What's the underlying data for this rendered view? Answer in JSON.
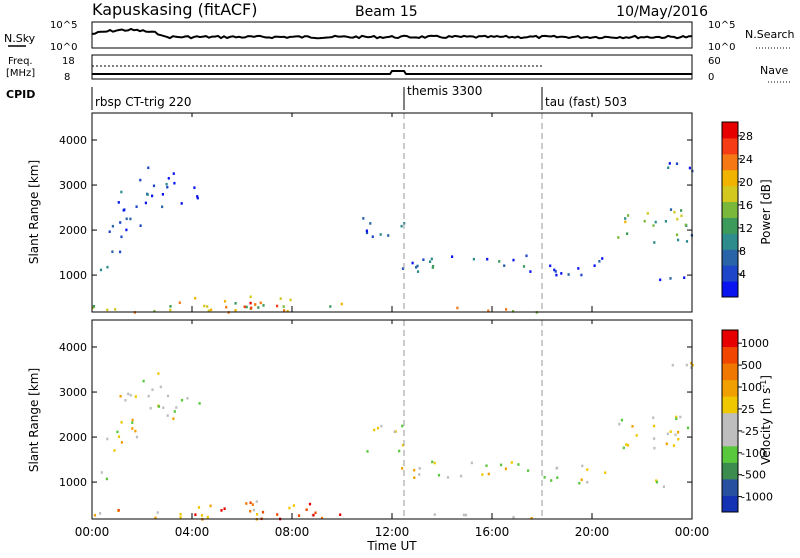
{
  "header": {
    "station": "Kapuskasing (fitACF)",
    "beam": "Beam 15",
    "date": "10/May/2016"
  },
  "noise_panel": {
    "left_label": "N.Sky",
    "right_label": "N.Search",
    "left_ticks": [
      "10^5",
      "10^0"
    ],
    "right_ticks": [
      "10^5",
      "10^0"
    ]
  },
  "freq_panel": {
    "left_label_line1": "Freq.",
    "left_label_line2": "[MHz]",
    "left_ticks": [
      "18",
      "8"
    ],
    "right_label": "Nave",
    "right_ticks": [
      "60",
      "0"
    ]
  },
  "cpid_panel": {
    "label": "CPID",
    "segments": [
      {
        "name": "rbsp CT-trig 220",
        "start_hour": 0.0
      },
      {
        "name": "themis 3300",
        "start_hour": 12.5
      },
      {
        "name": "tau (fast) 503",
        "start_hour": 18.0
      }
    ]
  },
  "xaxis": {
    "label": "Time UT",
    "range_hours": [
      0,
      24
    ],
    "ticks": [
      {
        "hour": 0,
        "label": "00:00"
      },
      {
        "hour": 4,
        "label": "04:00"
      },
      {
        "hour": 8,
        "label": "08:00"
      },
      {
        "hour": 12,
        "label": "12:00"
      },
      {
        "hour": 16,
        "label": "16:00"
      },
      {
        "hour": 20,
        "label": "20:00"
      },
      {
        "hour": 24,
        "label": "00:00"
      }
    ]
  },
  "chart_data": [
    {
      "type": "heatmap",
      "name": "power",
      "ylabel": "Slant Range [km]",
      "ylim": [
        180,
        4600
      ],
      "xlim": [
        0,
        24
      ],
      "yticks": [
        1000,
        2000,
        3000,
        4000
      ],
      "colorbar": {
        "label": "Power [dB]",
        "ticks": [
          "4",
          "8",
          "12",
          "16",
          "20",
          "24",
          "28"
        ],
        "colors": [
          "#0a14f0",
          "#1e46c8",
          "#2a64a8",
          "#2e8c8c",
          "#3c9a5a",
          "#7ab83c",
          "#d2c81e",
          "#f0b400",
          "#f57814",
          "#f53c14",
          "#e60000"
        ]
      },
      "dashed_lines_hours": [
        12.5,
        18.0
      ],
      "scatter_regions": [
        {
          "t": [
            0.0,
            0.6
          ],
          "r": [
            1050,
            1350
          ],
          "level": 0.55
        },
        {
          "t": [
            0.5,
            1.2
          ],
          "r": [
            1400,
            2200
          ],
          "level": 0.2
        },
        {
          "t": [
            1.0,
            2.0
          ],
          "r": [
            2000,
            3200
          ],
          "level": 0.15
        },
        {
          "t": [
            2.0,
            3.3
          ],
          "r": [
            2400,
            3500
          ],
          "level": 0.12
        },
        {
          "t": [
            3.3,
            4.3
          ],
          "r": [
            2600,
            3000
          ],
          "level": 0.05
        },
        {
          "t": [
            0.0,
            10.0
          ],
          "r": [
            200,
            420
          ],
          "level": 0.6
        },
        {
          "t": [
            4.0,
            9.0
          ],
          "r": [
            200,
            600
          ],
          "level": 0.75
        },
        {
          "t": [
            10.8,
            12.5
          ],
          "r": [
            1700,
            2300
          ],
          "level": 0.15
        },
        {
          "t": [
            12.3,
            17.5
          ],
          "r": [
            1100,
            1500
          ],
          "level": 0.25
        },
        {
          "t": [
            13.0,
            18.0
          ],
          "r": [
            200,
            320
          ],
          "level": 0.6
        },
        {
          "t": [
            18.0,
            21.0
          ],
          "r": [
            1000,
            1400
          ],
          "level": 0.1
        },
        {
          "t": [
            21.0,
            24.0
          ],
          "r": [
            1700,
            2500
          ],
          "level": 0.45
        },
        {
          "t": [
            22.5,
            24.0
          ],
          "r": [
            900,
            1100
          ],
          "level": 0.15
        },
        {
          "t": [
            23.0,
            24.0
          ],
          "r": [
            3300,
            3800
          ],
          "level": 0.1
        }
      ]
    },
    {
      "type": "heatmap",
      "name": "velocity",
      "ylabel": "Slant Range [km]",
      "ylim": [
        180,
        4600
      ],
      "xlim": [
        0,
        24
      ],
      "yticks": [
        1000,
        2000,
        3000,
        4000
      ],
      "colorbar": {
        "label": "Velocity [m s^-1]",
        "ticks": [
          "1000",
          "500",
          "100",
          "25",
          "-25",
          "-100",
          "-500",
          "-1000"
        ],
        "colors": [
          "#1432b4",
          "#2850a0",
          "#3c8c50",
          "#5ac83c",
          "#bebebe",
          "#bebebe",
          "#f0c800",
          "#f0a000",
          "#f07800",
          "#f04600",
          "#e60000"
        ]
      },
      "dashed_lines_hours": [
        12.5,
        18.0
      ],
      "scatter_regions": [
        {
          "t": [
            0.0,
            0.6
          ],
          "r": [
            1050,
            1350
          ],
          "level": 0.5
        },
        {
          "t": [
            0.5,
            1.2
          ],
          "r": [
            1400,
            2200
          ],
          "level": 0.5
        },
        {
          "t": [
            1.0,
            2.0
          ],
          "r": [
            2000,
            3200
          ],
          "level": 0.5
        },
        {
          "t": [
            2.0,
            3.3
          ],
          "r": [
            2400,
            3500
          ],
          "level": 0.5
        },
        {
          "t": [
            3.3,
            4.3
          ],
          "r": [
            2600,
            3000
          ],
          "level": 0.5
        },
        {
          "t": [
            0.0,
            10.0
          ],
          "r": [
            200,
            420
          ],
          "level": 0.7
        },
        {
          "t": [
            4.0,
            9.0
          ],
          "r": [
            200,
            600
          ],
          "level": 0.75
        },
        {
          "t": [
            10.8,
            12.5
          ],
          "r": [
            1700,
            2300
          ],
          "level": 0.5
        },
        {
          "t": [
            12.3,
            17.5
          ],
          "r": [
            1100,
            1500
          ],
          "level": 0.5
        },
        {
          "t": [
            13.0,
            18.0
          ],
          "r": [
            200,
            320
          ],
          "level": 0.5
        },
        {
          "t": [
            18.0,
            21.0
          ],
          "r": [
            1000,
            1400
          ],
          "level": 0.5
        },
        {
          "t": [
            21.0,
            24.0
          ],
          "r": [
            1700,
            2500
          ],
          "level": 0.5
        },
        {
          "t": [
            22.5,
            24.0
          ],
          "r": [
            900,
            1100
          ],
          "level": 0.5
        },
        {
          "t": [
            23.0,
            24.0
          ],
          "r": [
            3300,
            3800
          ],
          "level": 0.5
        }
      ]
    }
  ]
}
